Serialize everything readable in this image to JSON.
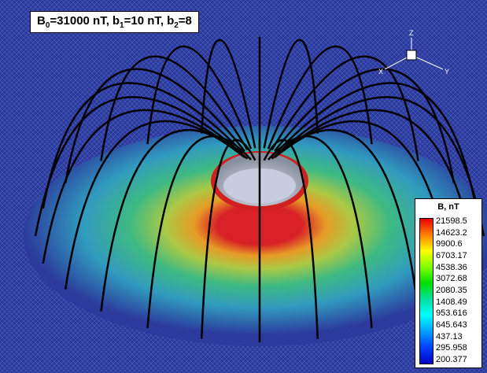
{
  "title": [
    {
      "symbol": "B",
      "sub": "0",
      "value": "=31000 nT,"
    },
    {
      "symbol": "b",
      "sub": "1",
      "value": "=10 nT,"
    },
    {
      "symbol": "b",
      "sub": "2",
      "value": "=8"
    }
  ],
  "triad": {
    "z": "Z",
    "x": "X",
    "y": "Y"
  },
  "legend": {
    "title": "B, nT",
    "labels": [
      "21598.5",
      "14623.2",
      "9900.6",
      "6703.17",
      "4538.36",
      "3072.68",
      "2080.35",
      "1408.49",
      "953.616",
      "645.643",
      "437.13",
      "295.958",
      "200.377"
    ]
  }
}
